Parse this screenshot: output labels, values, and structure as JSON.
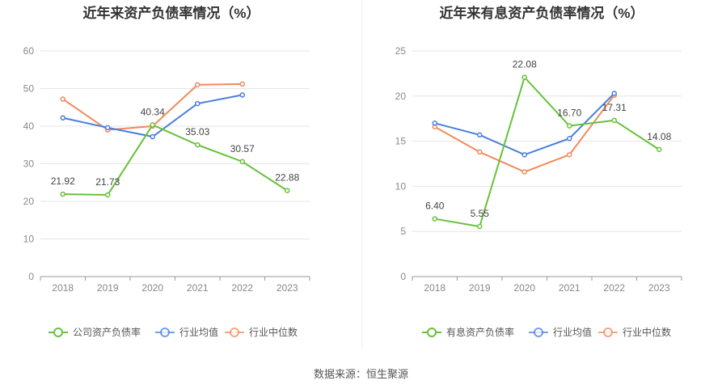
{
  "source": "数据来源：恒生聚源",
  "chart_data": [
    {
      "type": "line",
      "title": "近年来资产负债率情况（%）",
      "categories": [
        "2018",
        "2019",
        "2020",
        "2021",
        "2022",
        "2023"
      ],
      "ylim": [
        0,
        60
      ],
      "yticks": [
        0,
        10,
        20,
        30,
        40,
        50,
        60
      ],
      "series": [
        {
          "name": "公司资产负债率",
          "color": "#67c23a",
          "values": [
            21.92,
            21.73,
            40.34,
            35.03,
            30.57,
            22.88
          ],
          "labels": [
            "21.92",
            "21.73",
            "40.34",
            "35.03",
            "30.57",
            "22.88"
          ]
        },
        {
          "name": "行业均值",
          "color": "#4a7fdc",
          "values": [
            42.2,
            39.6,
            37.2,
            46.0,
            48.3,
            null
          ]
        },
        {
          "name": "行业中位数",
          "color": "#f08a5d",
          "values": [
            47.2,
            39.0,
            40.0,
            51.0,
            51.2,
            null
          ]
        }
      ]
    },
    {
      "type": "line",
      "title": "近年来有息资产负债率情况（%）",
      "categories": [
        "2018",
        "2019",
        "2020",
        "2021",
        "2022",
        "2023"
      ],
      "ylim": [
        0,
        25
      ],
      "yticks": [
        0,
        5,
        10,
        15,
        20,
        25
      ],
      "series": [
        {
          "name": "有息资产负债率",
          "color": "#67c23a",
          "values": [
            6.4,
            5.55,
            22.08,
            16.7,
            17.31,
            14.08
          ],
          "labels": [
            "6.40",
            "5.55",
            "22.08",
            "16.70",
            "17.31",
            "14.08"
          ]
        },
        {
          "name": "行业均值",
          "color": "#4a7fdc",
          "values": [
            17.0,
            15.7,
            13.5,
            15.3,
            20.3,
            null
          ]
        },
        {
          "name": "行业中位数",
          "color": "#f08a5d",
          "values": [
            16.6,
            13.8,
            11.6,
            13.5,
            20.1,
            null
          ]
        }
      ]
    }
  ]
}
